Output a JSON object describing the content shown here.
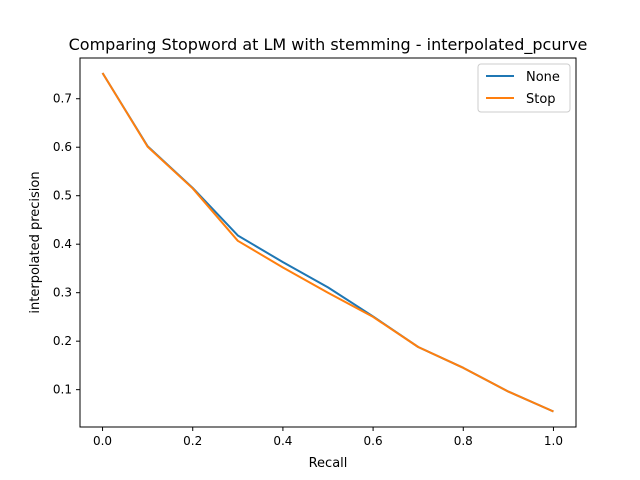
{
  "chart_data": {
    "type": "line",
    "title": "Comparing Stopword at LM with stemming - interpolated_pcurve",
    "xlabel": "Recall",
    "ylabel": "interpolated precision",
    "xlim": [
      -0.05,
      1.05
    ],
    "ylim": [
      0.023,
      0.784
    ],
    "x": [
      0.0,
      0.1,
      0.2,
      0.3,
      0.4,
      0.5,
      0.6,
      0.7,
      0.8,
      0.9,
      1.0
    ],
    "xticks": [
      "0.0",
      "0.2",
      "0.4",
      "0.6",
      "0.8",
      "1.0"
    ],
    "yticks": [
      "0.1",
      "0.2",
      "0.3",
      "0.4",
      "0.5",
      "0.6",
      "0.7"
    ],
    "grid": false,
    "legend_position": "top-right",
    "series": [
      {
        "name": "None",
        "color": "#1f77b4",
        "values": [
          0.753,
          0.602,
          0.516,
          0.418,
          0.363,
          0.311,
          0.251,
          0.188,
          0.145,
          0.096,
          0.055
        ]
      },
      {
        "name": "Stop",
        "color": "#ff7f0e",
        "values": [
          0.753,
          0.601,
          0.515,
          0.407,
          0.352,
          0.3,
          0.25,
          0.188,
          0.145,
          0.096,
          0.055
        ]
      }
    ]
  }
}
